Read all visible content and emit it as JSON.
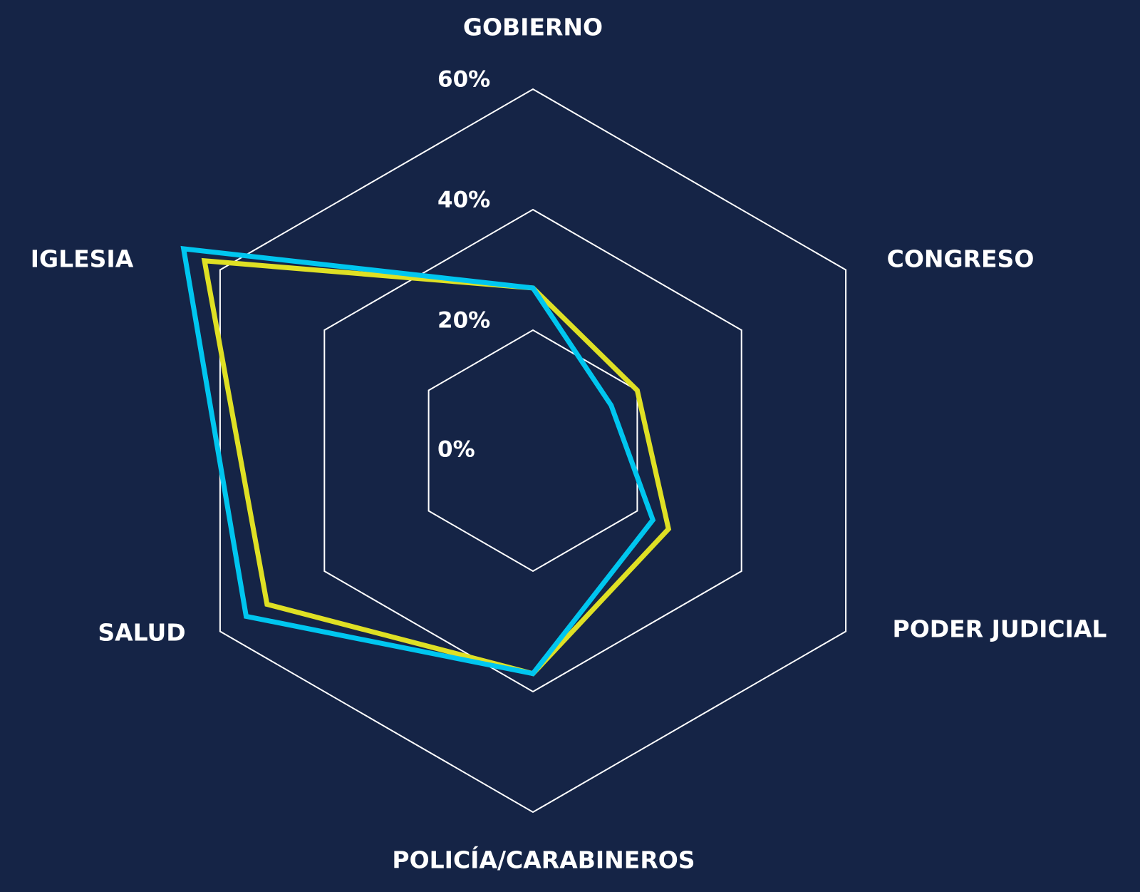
{
  "chart_data": {
    "type": "radar",
    "categories": [
      "GOBIERNO",
      "CONGRESO",
      "PODER JUDICIAL",
      "POLICÍA/CARABINEROS",
      "SALUD",
      "IGLESIA"
    ],
    "series": [
      {
        "color": "#dfe024",
        "values": [
          27,
          20,
          26,
          37,
          51,
          63
        ]
      },
      {
        "color": "#00c6ef",
        "values": [
          27,
          15,
          23,
          37,
          55,
          67
        ]
      }
    ],
    "ylim": [
      0,
      60
    ],
    "yticks": [
      {
        "value": 0,
        "label": "0%"
      },
      {
        "value": 20,
        "label": "20%"
      },
      {
        "value": 40,
        "label": "40%"
      },
      {
        "value": 60,
        "label": "60%"
      }
    ],
    "grid": true
  }
}
